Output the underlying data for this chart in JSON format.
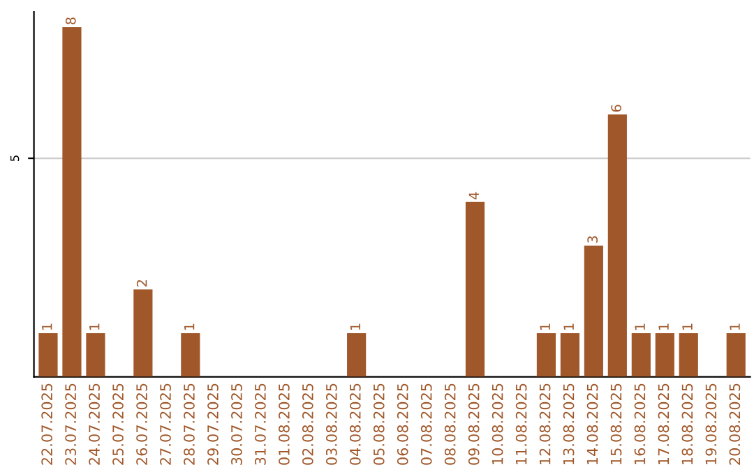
{
  "chart_data": {
    "type": "bar",
    "categories": [
      "22.07.2025",
      "23.07.2025",
      "24.07.2025",
      "25.07.2025",
      "26.07.2025",
      "27.07.2025",
      "28.07.2025",
      "29.07.2025",
      "30.07.2025",
      "31.07.2025",
      "01.08.2025",
      "02.08.2025",
      "03.08.2025",
      "04.08.2025",
      "05.08.2025",
      "06.08.2025",
      "07.08.2025",
      "08.08.2025",
      "09.08.2025",
      "10.08.2025",
      "11.08.2025",
      "12.08.2025",
      "13.08.2025",
      "14.08.2025",
      "15.08.2025",
      "16.08.2025",
      "17.08.2025",
      "18.08.2025",
      "19.08.2025",
      "20.08.2025"
    ],
    "values": [
      1,
      8,
      1,
      0,
      2,
      0,
      1,
      0,
      0,
      0,
      0,
      0,
      0,
      1,
      0,
      0,
      0,
      0,
      4,
      0,
      0,
      1,
      1,
      3,
      6,
      1,
      1,
      1,
      0,
      1
    ],
    "value_labels": [
      "1",
      "8",
      "1",
      null,
      "2",
      null,
      "1",
      null,
      null,
      null,
      null,
      null,
      null,
      "1",
      null,
      null,
      null,
      null,
      "4",
      null,
      null,
      "1",
      "1",
      "3",
      "6",
      "1",
      "1",
      "1",
      null,
      "1"
    ],
    "color": "#a0582a",
    "ylim": [
      0,
      8.35
    ],
    "yticks": [
      5
    ],
    "grid": "y"
  }
}
